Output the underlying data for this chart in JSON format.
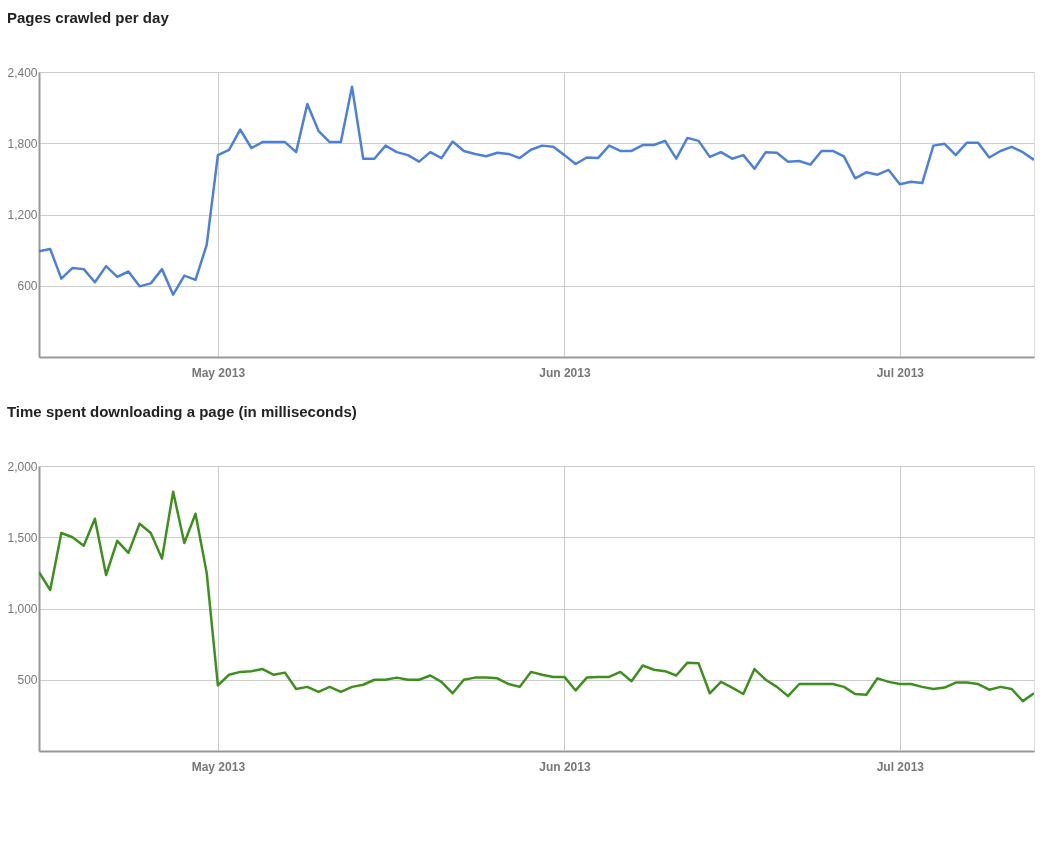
{
  "chart_data": [
    {
      "type": "line",
      "title": "Pages crawled per day",
      "x": [
        "2013-04-15",
        "2013-04-16",
        "2013-04-17",
        "2013-04-18",
        "2013-04-19",
        "2013-04-20",
        "2013-04-21",
        "2013-04-22",
        "2013-04-23",
        "2013-04-24",
        "2013-04-25",
        "2013-04-26",
        "2013-04-27",
        "2013-04-28",
        "2013-04-29",
        "2013-04-30",
        "2013-05-01",
        "2013-05-02",
        "2013-05-03",
        "2013-05-04",
        "2013-05-05",
        "2013-05-06",
        "2013-05-07",
        "2013-05-08",
        "2013-05-09",
        "2013-05-10",
        "2013-05-11",
        "2013-05-12",
        "2013-05-13",
        "2013-05-14",
        "2013-05-15",
        "2013-05-16",
        "2013-05-17",
        "2013-05-18",
        "2013-05-19",
        "2013-05-20",
        "2013-05-21",
        "2013-05-22",
        "2013-05-23",
        "2013-05-24",
        "2013-05-25",
        "2013-05-26",
        "2013-05-27",
        "2013-05-28",
        "2013-05-29",
        "2013-05-30",
        "2013-05-31",
        "2013-06-01",
        "2013-06-02",
        "2013-06-03",
        "2013-06-04",
        "2013-06-05",
        "2013-06-06",
        "2013-06-07",
        "2013-06-08",
        "2013-06-09",
        "2013-06-10",
        "2013-06-11",
        "2013-06-12",
        "2013-06-13",
        "2013-06-14",
        "2013-06-15",
        "2013-06-16",
        "2013-06-17",
        "2013-06-18",
        "2013-06-19",
        "2013-06-20",
        "2013-06-21",
        "2013-06-22",
        "2013-06-23",
        "2013-06-24",
        "2013-06-25",
        "2013-06-26",
        "2013-06-27",
        "2013-06-28",
        "2013-06-29",
        "2013-06-30",
        "2013-07-01",
        "2013-07-02",
        "2013-07-03",
        "2013-07-04",
        "2013-07-05",
        "2013-07-06",
        "2013-07-07",
        "2013-07-08",
        "2013-07-09",
        "2013-07-10",
        "2013-07-11",
        "2013-07-12",
        "2013-07-13"
      ],
      "series": [
        {
          "color": "#4d80d8",
          "values": [
            890,
            910,
            660,
            750,
            740,
            630,
            765,
            675,
            720,
            595,
            620,
            740,
            525,
            685,
            650,
            945,
            1700,
            1745,
            1915,
            1760,
            1810,
            1810,
            1810,
            1725,
            2130,
            1905,
            1810,
            1810,
            2275,
            1670,
            1670,
            1780,
            1725,
            1700,
            1645,
            1725,
            1675,
            1815,
            1735,
            1710,
            1690,
            1720,
            1710,
            1675,
            1745,
            1780,
            1770,
            1700,
            1625,
            1680,
            1675,
            1780,
            1735,
            1735,
            1785,
            1785,
            1820,
            1670,
            1845,
            1820,
            1685,
            1725,
            1670,
            1700,
            1585,
            1725,
            1720,
            1645,
            1650,
            1620,
            1735,
            1735,
            1690,
            1505,
            1555,
            1535,
            1575,
            1455,
            1475,
            1465,
            1780,
            1795,
            1700,
            1805,
            1805,
            1680,
            1735,
            1770,
            1725,
            1660
          ]
        }
      ],
      "xlim": [
        "2013-04-15",
        "2013-07-13"
      ],
      "xticks": [
        {
          "value": "2013-05-01",
          "label": "May 2013"
        },
        {
          "value": "2013-06-01",
          "label": "Jun 2013"
        },
        {
          "value": "2013-07-01",
          "label": "Jul 2013"
        }
      ],
      "ylim": [
        0,
        2400
      ],
      "yticks": [
        {
          "value": 0,
          "label": null
        },
        {
          "value": 600,
          "label": "600"
        },
        {
          "value": 1200,
          "label": "1,200"
        },
        {
          "value": 1800,
          "label": "1,800"
        },
        {
          "value": 2400,
          "label": "2,400"
        }
      ],
      "grid": true
    },
    {
      "type": "line",
      "title": "Time spent downloading a page (in milliseconds)",
      "x": [
        "2013-04-15",
        "2013-04-16",
        "2013-04-17",
        "2013-04-18",
        "2013-04-19",
        "2013-04-20",
        "2013-04-21",
        "2013-04-22",
        "2013-04-23",
        "2013-04-24",
        "2013-04-25",
        "2013-04-26",
        "2013-04-27",
        "2013-04-28",
        "2013-04-29",
        "2013-04-30",
        "2013-05-01",
        "2013-05-02",
        "2013-05-03",
        "2013-05-04",
        "2013-05-05",
        "2013-05-06",
        "2013-05-07",
        "2013-05-08",
        "2013-05-09",
        "2013-05-10",
        "2013-05-11",
        "2013-05-12",
        "2013-05-13",
        "2013-05-14",
        "2013-05-15",
        "2013-05-16",
        "2013-05-17",
        "2013-05-18",
        "2013-05-19",
        "2013-05-20",
        "2013-05-21",
        "2013-05-22",
        "2013-05-23",
        "2013-05-24",
        "2013-05-25",
        "2013-05-26",
        "2013-05-27",
        "2013-05-28",
        "2013-05-29",
        "2013-05-30",
        "2013-05-31",
        "2013-06-01",
        "2013-06-02",
        "2013-06-03",
        "2013-06-04",
        "2013-06-05",
        "2013-06-06",
        "2013-06-07",
        "2013-06-08",
        "2013-06-09",
        "2013-06-10",
        "2013-06-11",
        "2013-06-12",
        "2013-06-13",
        "2013-06-14",
        "2013-06-15",
        "2013-06-16",
        "2013-06-17",
        "2013-06-18",
        "2013-06-19",
        "2013-06-20",
        "2013-06-21",
        "2013-06-22",
        "2013-06-23",
        "2013-06-24",
        "2013-06-25",
        "2013-06-26",
        "2013-06-27",
        "2013-06-28",
        "2013-06-29",
        "2013-06-30",
        "2013-07-01",
        "2013-07-02",
        "2013-07-03",
        "2013-07-04",
        "2013-07-05",
        "2013-07-06",
        "2013-07-07",
        "2013-07-08",
        "2013-07-09",
        "2013-07-10",
        "2013-07-11",
        "2013-07-12",
        "2013-07-13"
      ],
      "series": [
        {
          "color": "#3f8f1f",
          "values": [
            1255,
            1130,
            1530,
            1500,
            1440,
            1630,
            1235,
            1475,
            1390,
            1595,
            1530,
            1350,
            1820,
            1460,
            1665,
            1250,
            460,
            535,
            555,
            560,
            575,
            535,
            550,
            435,
            450,
            415,
            450,
            415,
            450,
            465,
            500,
            500,
            515,
            500,
            500,
            530,
            485,
            405,
            500,
            515,
            515,
            510,
            470,
            450,
            555,
            535,
            520,
            520,
            425,
            515,
            520,
            520,
            555,
            490,
            600,
            570,
            560,
            530,
            620,
            615,
            405,
            485,
            445,
            400,
            575,
            500,
            450,
            385,
            470,
            470,
            470,
            470,
            450,
            400,
            395,
            510,
            485,
            470,
            470,
            450,
            435,
            445,
            480,
            480,
            470,
            430,
            450,
            435,
            350,
            405
          ]
        }
      ],
      "xlim": [
        "2013-04-15",
        "2013-07-13"
      ],
      "xticks": [
        {
          "value": "2013-05-01",
          "label": "May 2013"
        },
        {
          "value": "2013-06-01",
          "label": "Jun 2013"
        },
        {
          "value": "2013-07-01",
          "label": "Jul 2013"
        }
      ],
      "ylim": [
        0,
        2000
      ],
      "yticks": [
        {
          "value": 0,
          "label": null
        },
        {
          "value": 500,
          "label": "500"
        },
        {
          "value": 1000,
          "label": "1,000"
        },
        {
          "value": 1500,
          "label": "1,500"
        },
        {
          "value": 2000,
          "label": "2,000"
        }
      ],
      "grid": true
    }
  ]
}
